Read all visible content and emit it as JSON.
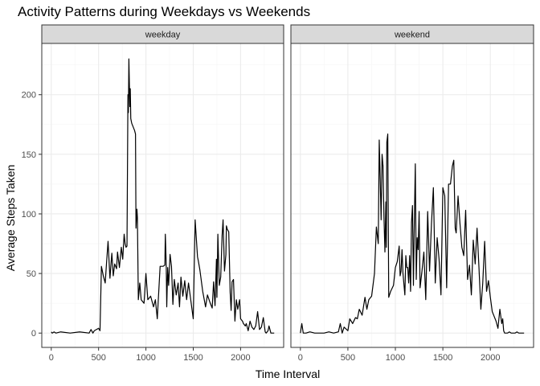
{
  "chart_data": {
    "type": "line",
    "title": "Activity Patterns during Weekdays vs Weekends",
    "xlabel": "Time Interval",
    "ylabel": "Average Steps Taken",
    "xlim": [
      -100,
      2455
    ],
    "ylim": [
      -12,
      243
    ],
    "x_ticks": [
      0,
      500,
      1000,
      1500,
      2000
    ],
    "y_ticks": [
      0,
      50,
      100,
      150,
      200
    ],
    "grid": true,
    "facets": [
      {
        "label": "weekday",
        "x": [
          0,
          10,
          30,
          50,
          100,
          200,
          300,
          400,
          420,
          440,
          455,
          500,
          515,
          530,
          550,
          570,
          585,
          600,
          620,
          640,
          655,
          670,
          690,
          700,
          720,
          740,
          755,
          770,
          780,
          790,
          800,
          810,
          815,
          820,
          830,
          835,
          840,
          845,
          850,
          855,
          880,
          890,
          895,
          905,
          910,
          920,
          935,
          950,
          980,
          1000,
          1020,
          1050,
          1080,
          1100,
          1120,
          1150,
          1180,
          1200,
          1205,
          1210,
          1215,
          1220,
          1230,
          1240,
          1255,
          1270,
          1285,
          1300,
          1320,
          1340,
          1355,
          1370,
          1390,
          1410,
          1430,
          1450,
          1500,
          1520,
          1540,
          1545,
          1555,
          1570,
          1600,
          1630,
          1650,
          1680,
          1700,
          1715,
          1730,
          1745,
          1750,
          1760,
          1775,
          1790,
          1805,
          1815,
          1830,
          1845,
          1850,
          1860,
          1875,
          1890,
          1900,
          1910,
          1925,
          1940,
          1955,
          1970,
          1990,
          2000,
          2020,
          2030,
          2050,
          2060,
          2080,
          2100,
          2120,
          2140,
          2160,
          2180,
          2200,
          2220,
          2240,
          2260,
          2270,
          2290,
          2300,
          2320,
          2340,
          2355
        ],
        "y": [
          1,
          0,
          1,
          0,
          1,
          0,
          1,
          0,
          3,
          0,
          2,
          4,
          2,
          56,
          48,
          42,
          60,
          77,
          46,
          67,
          48,
          58,
          54,
          68,
          55,
          72,
          62,
          83,
          75,
          72,
          73,
          200,
          185,
          230,
          190,
          205,
          180,
          178,
          176,
          175,
          170,
          167,
          88,
          104,
          97,
          28,
          42,
          28,
          25,
          50,
          28,
          31,
          22,
          28,
          12,
          56,
          56,
          57,
          83,
          70,
          55,
          22,
          55,
          40,
          66,
          56,
          24,
          45,
          32,
          42,
          22,
          47,
          31,
          44,
          28,
          42,
          12,
          95,
          70,
          64,
          60,
          53,
          35,
          22,
          32,
          25,
          21,
          43,
          23,
          62,
          30,
          83,
          40,
          47,
          82,
          95,
          52,
          66,
          90,
          87,
          85,
          34,
          19,
          43,
          45,
          10,
          28,
          20,
          28,
          12,
          10,
          8,
          6,
          8,
          2,
          10,
          5,
          3,
          6,
          18,
          3,
          5,
          13,
          1,
          0,
          2,
          6,
          0,
          0,
          0
        ],
        "name": "weekday"
      },
      {
        "label": "weekend",
        "x": [
          0,
          15,
          30,
          60,
          100,
          150,
          200,
          250,
          300,
          350,
          400,
          420,
          440,
          460,
          500,
          520,
          550,
          580,
          600,
          620,
          650,
          680,
          700,
          720,
          750,
          780,
          800,
          820,
          830,
          840,
          850,
          860,
          870,
          880,
          890,
          900,
          905,
          910,
          920,
          930,
          950,
          980,
          1000,
          1020,
          1040,
          1050,
          1060,
          1070,
          1080,
          1100,
          1110,
          1120,
          1130,
          1140,
          1150,
          1160,
          1170,
          1180,
          1190,
          1200,
          1210,
          1220,
          1230,
          1240,
          1250,
          1260,
          1280,
          1300,
          1320,
          1340,
          1360,
          1380,
          1400,
          1420,
          1440,
          1460,
          1480,
          1500,
          1520,
          1540,
          1560,
          1580,
          1600,
          1615,
          1630,
          1640,
          1660,
          1680,
          1700,
          1720,
          1740,
          1760,
          1780,
          1800,
          1820,
          1840,
          1860,
          1880,
          1900,
          1920,
          1940,
          1960,
          1980,
          2000,
          2020,
          2040,
          2060,
          2080,
          2100,
          2120,
          2130,
          2140,
          2150,
          2160,
          2170,
          2180,
          2200,
          2220,
          2240,
          2260,
          2280,
          2300,
          2320,
          2340,
          2355
        ],
        "y": [
          0,
          8,
          0,
          0,
          1,
          0,
          0,
          0,
          1,
          0,
          1,
          8,
          0,
          5,
          2,
          12,
          8,
          13,
          12,
          20,
          15,
          30,
          20,
          28,
          31,
          50,
          89,
          75,
          162,
          130,
          95,
          150,
          140,
          97,
          68,
          110,
          72,
          160,
          167,
          30,
          35,
          40,
          55,
          60,
          73,
          48,
          52,
          70,
          50,
          32,
          65,
          55,
          55,
          42,
          65,
          35,
          93,
          107,
          40,
          95,
          142,
          45,
          80,
          70,
          102,
          38,
          52,
          68,
          28,
          102,
          52,
          92,
          122,
          42,
          80,
          62,
          32,
          122,
          115,
          38,
          125,
          125,
          140,
          145,
          88,
          84,
          115,
          92,
          72,
          65,
          103,
          45,
          57,
          32,
          78,
          58,
          88,
          55,
          20,
          42,
          77,
          35,
          44,
          30,
          18,
          14,
          10,
          4,
          20,
          8,
          12,
          2,
          0,
          0,
          0,
          0,
          1,
          0,
          0,
          0,
          1,
          0,
          0,
          0,
          0
        ],
        "name": "weekend"
      }
    ]
  },
  "colors": {
    "line": "#000000",
    "strip_fill": "#d9d9d9",
    "strip_border": "#333333",
    "panel_border": "#333333",
    "grid_major": "#ebebeb",
    "grid_minor": "#f5f5f5",
    "tick_text": "#4d4d4d"
  }
}
